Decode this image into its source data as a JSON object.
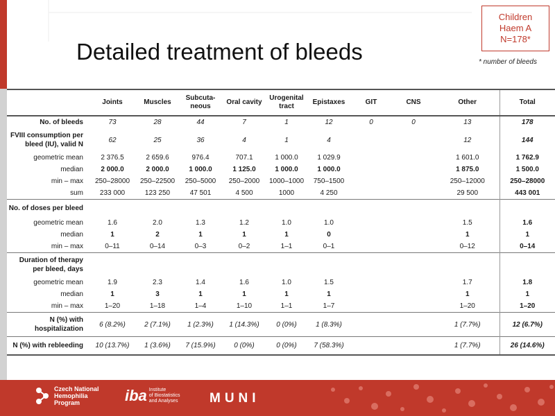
{
  "slide": {
    "title": "Detailed treatment of bleeds",
    "badge": [
      "Children",
      "Haem A",
      "N=178*"
    ],
    "note": "* number of bleeds"
  },
  "table": {
    "columns": [
      "Joints",
      "Muscles",
      "Subcuta-\nneous",
      "Oral cavity",
      "Urogenital\ntract",
      "Epistaxes",
      "GIT",
      "CNS",
      "Other",
      "Total"
    ],
    "rows": [
      {
        "label": "No. of bleeds",
        "bold_label": true,
        "italic": true,
        "values": [
          "73",
          "28",
          "44",
          "7",
          "1",
          "12",
          "0",
          "0",
          "13",
          "178"
        ],
        "bold_total": true
      },
      {
        "label": "FVIII consumption per bleed (IU), valid N",
        "bold_label": true,
        "italic": true,
        "header": true,
        "values": [
          "62",
          "25",
          "36",
          "4",
          "1",
          "4",
          "",
          "",
          "12",
          "144"
        ],
        "bold_total": true
      },
      {
        "label": "geometric mean",
        "values": [
          "2 376.5",
          "2 659.6",
          "976.4",
          "707.1",
          "1 000.0",
          "1 029.9",
          "",
          "",
          "1 601.0",
          "1 762.9"
        ],
        "bold_total": true
      },
      {
        "label": "median",
        "bold_values": true,
        "values": [
          "2 000.0",
          "2 000.0",
          "1 000.0",
          "1 125.0",
          "1 000.0",
          "1 000.0",
          "",
          "",
          "1 875.0",
          "1 500.0"
        ]
      },
      {
        "label": "min – max",
        "values": [
          "250–28000",
          "250–22500",
          "250–5000",
          "250–2000",
          "1000–1000",
          "750–1500",
          "",
          "",
          "250–12000",
          "250–28000"
        ],
        "bold_total": true
      },
      {
        "label": "sum",
        "values": [
          "233 000",
          "123 250",
          "47 501",
          "4 500",
          "1000",
          "4 250",
          "",
          "",
          "29 500",
          "443 001"
        ],
        "bold_total": true
      },
      {
        "label": "No. of doses per bleed",
        "bold_label": true,
        "header": true,
        "sep": true,
        "values": [
          "",
          "",
          "",
          "",
          "",
          "",
          "",
          "",
          "",
          ""
        ]
      },
      {
        "label": "geometric mean",
        "values": [
          "1.6",
          "2.0",
          "1.3",
          "1.2",
          "1.0",
          "1.0",
          "",
          "",
          "1.5",
          "1.6"
        ],
        "bold_total": true
      },
      {
        "label": "median",
        "bold_values": true,
        "values": [
          "1",
          "2",
          "1",
          "1",
          "1",
          "0",
          "",
          "",
          "1",
          "1"
        ]
      },
      {
        "label": "min – max",
        "values": [
          "0–11",
          "0–14",
          "0–3",
          "0–2",
          "1–1",
          "0–1",
          "",
          "",
          "0–12",
          "0–14"
        ],
        "bold_total": true
      },
      {
        "label": "Duration of therapy per bleed, days",
        "bold_label": true,
        "header": true,
        "sep": true,
        "values": [
          "",
          "",
          "",
          "",
          "",
          "",
          "",
          "",
          "",
          ""
        ]
      },
      {
        "label": "geometric mean",
        "values": [
          "1.9",
          "2.3",
          "1.4",
          "1.6",
          "1.0",
          "1.5",
          "",
          "",
          "1.7",
          "1.8"
        ],
        "bold_total": true
      },
      {
        "label": "median",
        "bold_values": true,
        "values": [
          "1",
          "3",
          "1",
          "1",
          "1",
          "1",
          "",
          "",
          "1",
          "1"
        ]
      },
      {
        "label": "min – max",
        "values": [
          "1–20",
          "1–18",
          "1–4",
          "1–10",
          "1–1",
          "1–7",
          "",
          "",
          "1–20",
          "1–20"
        ],
        "bold_total": true
      },
      {
        "label": "N (%) with hospitalization",
        "bold_label": true,
        "italic": true,
        "header": true,
        "sep": true,
        "values": [
          "6 (8.2%)",
          "2 (7.1%)",
          "1 (2.3%)",
          "1 (14.3%)",
          "0 (0%)",
          "1 (8.3%)",
          "",
          "",
          "1 (7.7%)",
          "12 (6.7%)"
        ],
        "bold_total": true
      },
      {
        "label": "N (%) with rebleeding",
        "bold_label": true,
        "italic": true,
        "header": true,
        "sep": true,
        "values": [
          "10 (13.7%)",
          "1 (3.6%)",
          "7 (15.9%)",
          "0 (0%)",
          "0 (0%)",
          "7 (58.3%)",
          "",
          "",
          "1 (7.7%)",
          "26 (14.6%)"
        ],
        "bold_total": true
      }
    ]
  },
  "footer": {
    "logo1": [
      "Czech National",
      "Hemophilia",
      "Program"
    ],
    "logo2_mark": "iba",
    "logo2_text": [
      "Institute",
      "of Biostatistics",
      "and Analyses"
    ],
    "logo3": "MUNI"
  },
  "colors": {
    "accent": "#c0392b"
  }
}
